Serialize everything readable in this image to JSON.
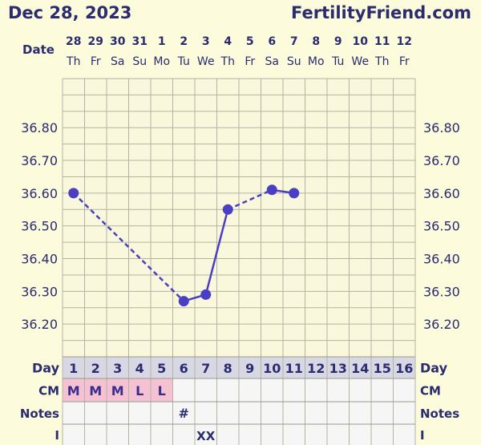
{
  "header": {
    "start_date": "Dec 28, 2023",
    "site": "FertilityFriend.com"
  },
  "row_labels": {
    "date": "Date",
    "day": "Day",
    "cm": "CM",
    "notes": "Notes",
    "intercourse": "I"
  },
  "chart_data": {
    "type": "line",
    "dates": [
      "28",
      "29",
      "30",
      "31",
      "1",
      "2",
      "3",
      "4",
      "5",
      "6",
      "7",
      "8",
      "9",
      "10",
      "11",
      "12"
    ],
    "weekdays": [
      "Th",
      "Fr",
      "Sa",
      "Su",
      "Mo",
      "Tu",
      "We",
      "Th",
      "Fr",
      "Sa",
      "Su",
      "Mo",
      "Tu",
      "We",
      "Th",
      "Fr"
    ],
    "days": [
      "1",
      "2",
      "3",
      "4",
      "5",
      "6",
      "7",
      "8",
      "9",
      "10",
      "11",
      "12",
      "13",
      "14",
      "15",
      "16"
    ],
    "y_ticks": [
      "36.80",
      "36.70",
      "36.60",
      "36.50",
      "36.40",
      "36.30",
      "36.20"
    ],
    "ylim": [
      36.1,
      36.95
    ],
    "temps": [
      {
        "day": 1,
        "temp": 36.6
      },
      {
        "day": 6,
        "temp": 36.27
      },
      {
        "day": 7,
        "temp": 36.29
      },
      {
        "day": 8,
        "temp": 36.55
      },
      {
        "day": 10,
        "temp": 36.61
      },
      {
        "day": 11,
        "temp": 36.6
      }
    ],
    "cervical_mucus": [
      {
        "day": 1,
        "code": "M"
      },
      {
        "day": 2,
        "code": "M"
      },
      {
        "day": 3,
        "code": "M"
      },
      {
        "day": 4,
        "code": "L"
      },
      {
        "day": 5,
        "code": "L"
      }
    ],
    "notes": [
      {
        "day": 6,
        "mark": "#"
      }
    ],
    "intercourse": [
      {
        "day": 7,
        "mark": "XX"
      }
    ],
    "colors": {
      "line": "#4a3fc4",
      "point": "#4a3fc4",
      "cm_cell": "#f4c2d2",
      "grid": "#b3b3a3",
      "day_row": "#d8d8e4",
      "plot_bg": "#f9f8dd",
      "table_bg": "#f6f6f6"
    }
  }
}
